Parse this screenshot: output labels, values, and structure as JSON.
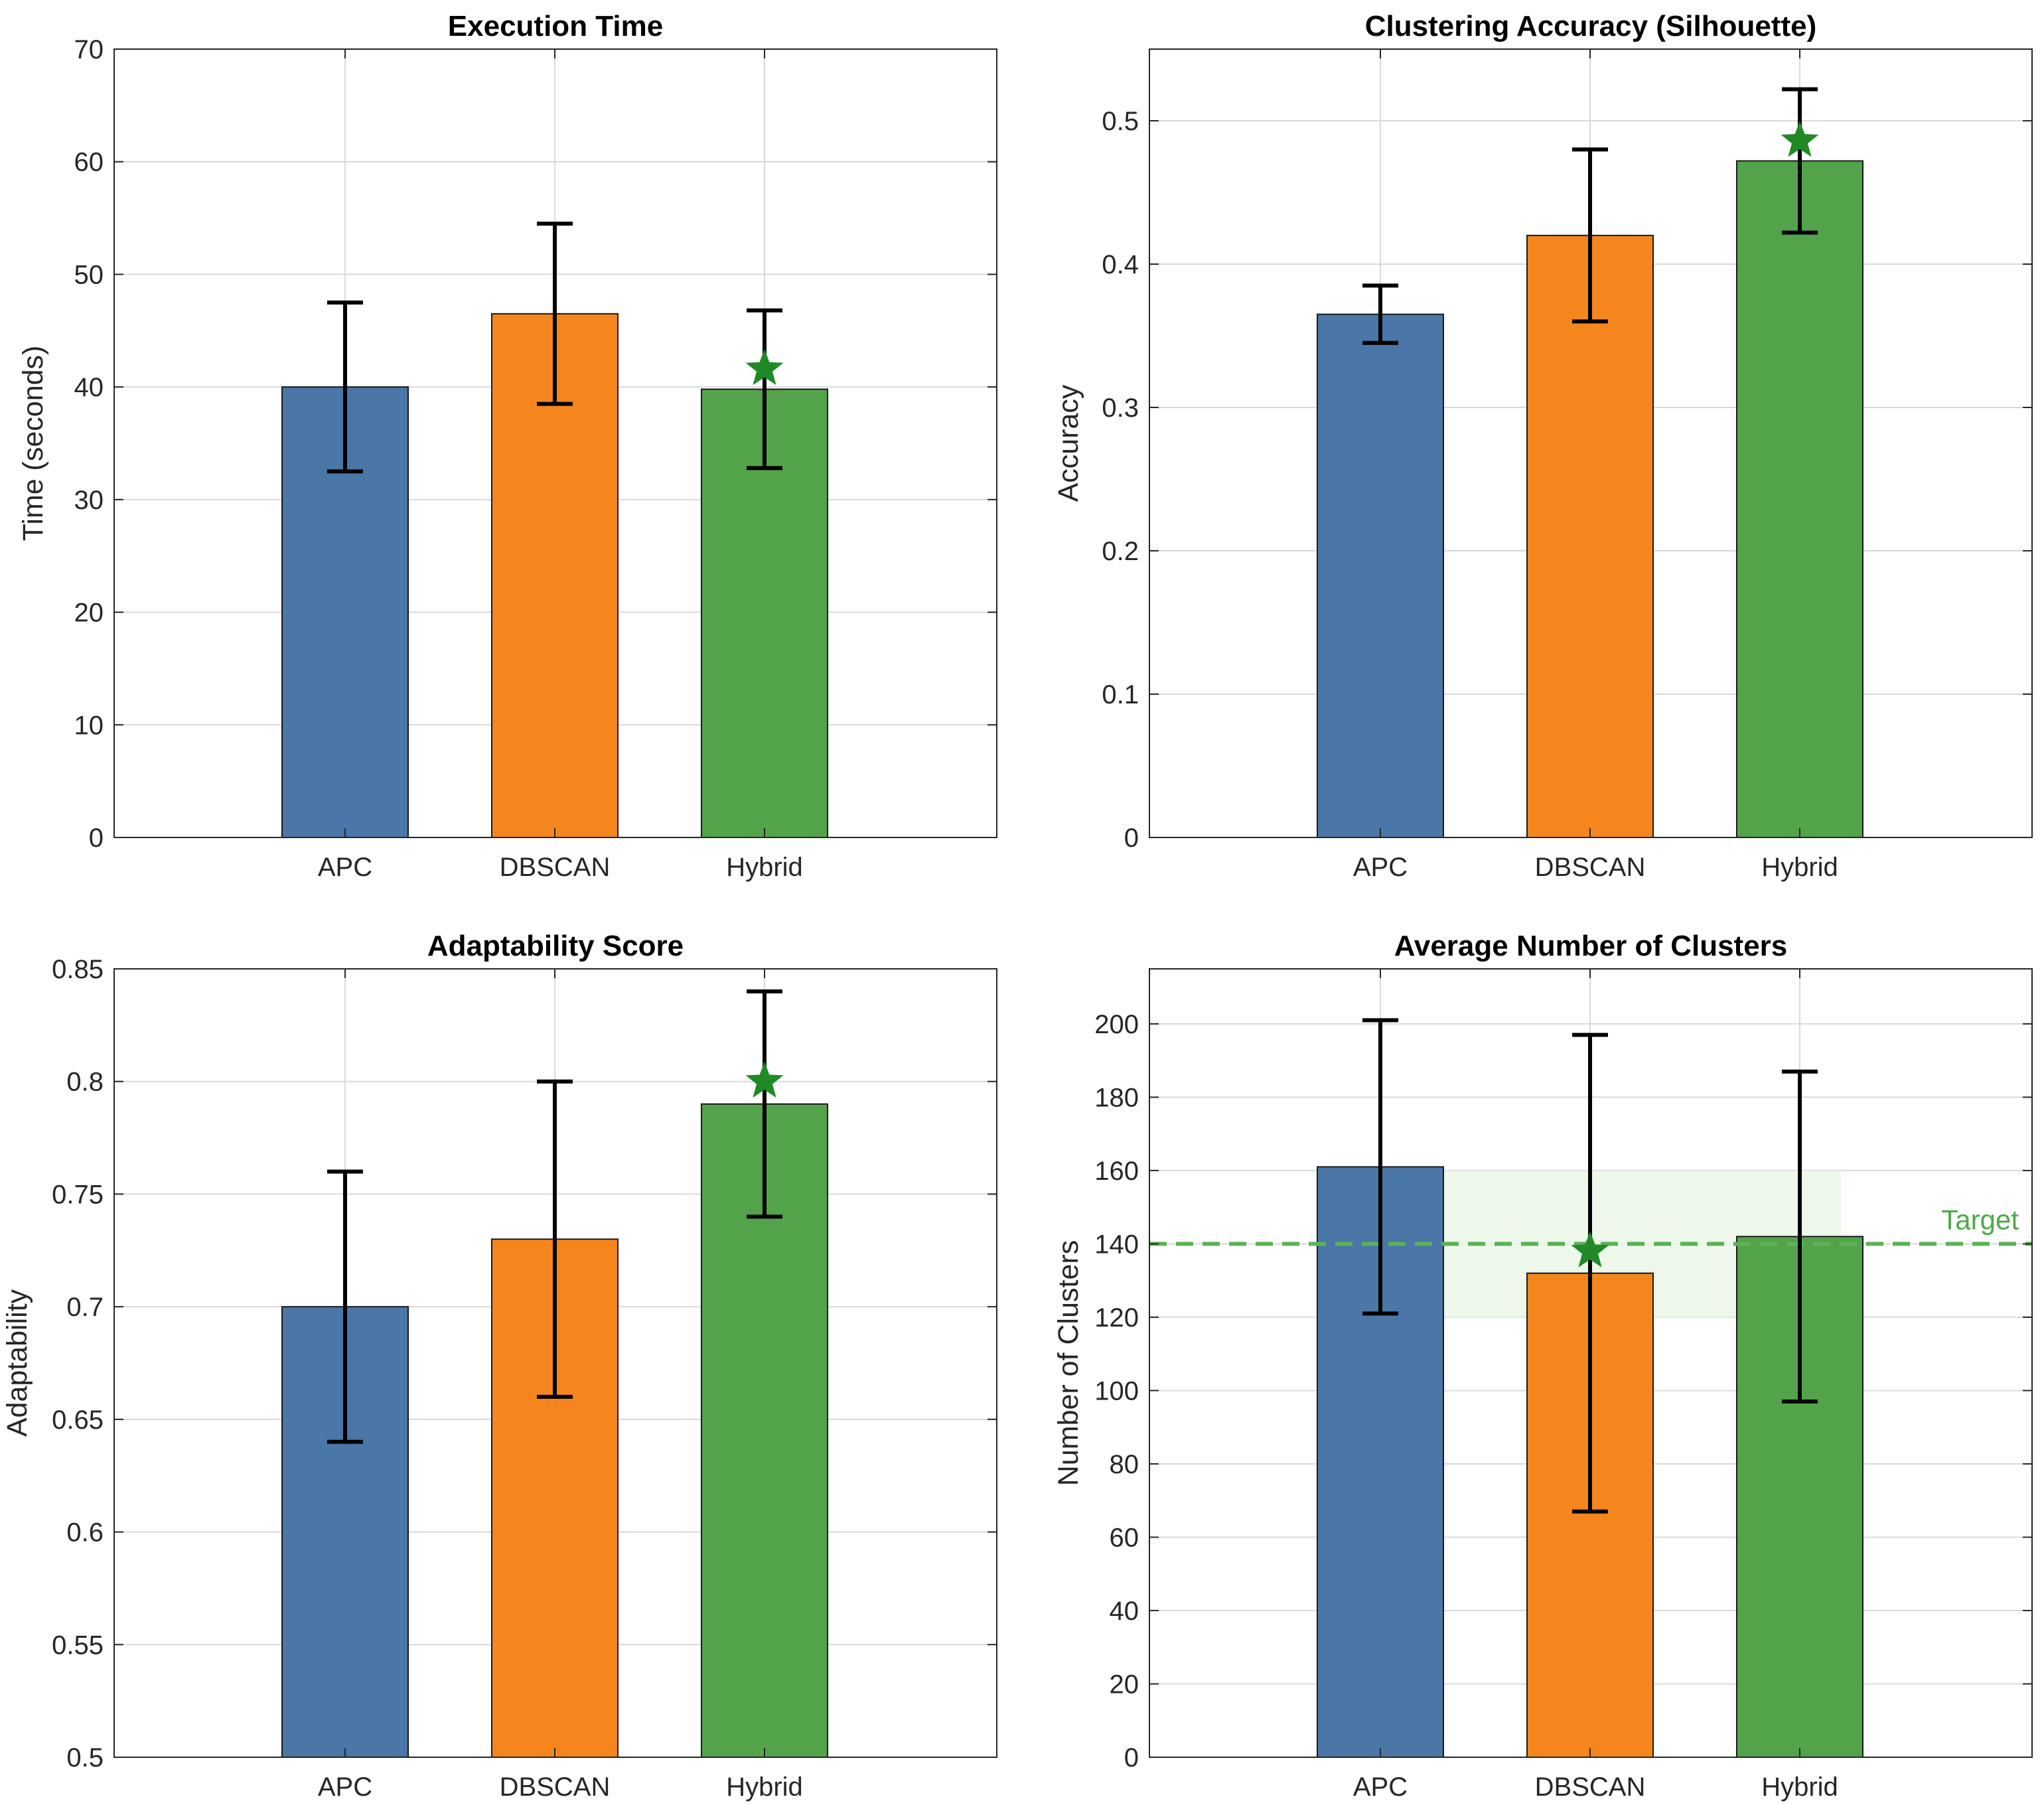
{
  "colors": {
    "APC": "#4a76a8",
    "DBSCAN": "#f5861d",
    "Hybrid": "#53a34b",
    "star": "#1f8a26",
    "target_line": "#5cb257",
    "target_band": "#e8f6e5"
  },
  "chart_data": [
    {
      "type": "bar",
      "title": "Execution Time",
      "ylabel": "Time (seconds)",
      "categories": [
        "APC",
        "DBSCAN",
        "Hybrid"
      ],
      "values": [
        40.0,
        46.5,
        39.8
      ],
      "errors": [
        7.5,
        8.0,
        7.0
      ],
      "best": "Hybrid",
      "best_marker_value": 41.6,
      "ylim": [
        0,
        70
      ],
      "yticks": [
        0,
        10,
        20,
        30,
        40,
        50,
        60,
        70
      ],
      "ytick_labels": [
        "0",
        "10",
        "20",
        "30",
        "40",
        "50",
        "60",
        "70"
      ],
      "grid": true
    },
    {
      "type": "bar",
      "title": "Clustering Accuracy (Silhouette)",
      "ylabel": "Accuracy",
      "categories": [
        "APC",
        "DBSCAN",
        "Hybrid"
      ],
      "values": [
        0.365,
        0.42,
        0.472
      ],
      "errors": [
        0.02,
        0.06,
        0.05
      ],
      "best": "Hybrid",
      "best_marker_value": 0.486,
      "ylim": [
        0,
        0.55
      ],
      "yticks": [
        0,
        0.1,
        0.2,
        0.3,
        0.4,
        0.5
      ],
      "ytick_labels": [
        "0",
        "0.1",
        "0.2",
        "0.3",
        "0.4",
        "0.5"
      ],
      "grid": true
    },
    {
      "type": "bar",
      "title": "Adaptability Score",
      "ylabel": "Adaptability",
      "categories": [
        "APC",
        "DBSCAN",
        "Hybrid"
      ],
      "values": [
        0.7,
        0.73,
        0.79
      ],
      "errors": [
        0.06,
        0.07,
        0.05
      ],
      "best": "Hybrid",
      "best_marker_value": 0.8,
      "ylim": [
        0.5,
        0.85
      ],
      "yticks": [
        0.5,
        0.55,
        0.6,
        0.65,
        0.7,
        0.75,
        0.8,
        0.85
      ],
      "ytick_labels": [
        "0.5",
        "0.55",
        "0.6",
        "0.65",
        "0.7",
        "0.75",
        "0.8",
        "0.85"
      ],
      "grid": true
    },
    {
      "type": "bar",
      "title": "Average Number of Clusters",
      "ylabel": "Number of Clusters",
      "categories": [
        "APC",
        "DBSCAN",
        "Hybrid"
      ],
      "values": [
        161,
        132,
        142
      ],
      "errors": [
        40,
        65,
        45
      ],
      "best": "DBSCAN",
      "best_marker_value": 138,
      "ylim": [
        0,
        215
      ],
      "yticks": [
        0,
        20,
        40,
        60,
        80,
        100,
        120,
        140,
        160,
        180,
        200
      ],
      "ytick_labels": [
        "0",
        "20",
        "40",
        "60",
        "80",
        "100",
        "120",
        "140",
        "160",
        "180",
        "200"
      ],
      "grid": true,
      "reference": {
        "label": "Target",
        "value": 140,
        "band": [
          120,
          160
        ]
      }
    }
  ]
}
